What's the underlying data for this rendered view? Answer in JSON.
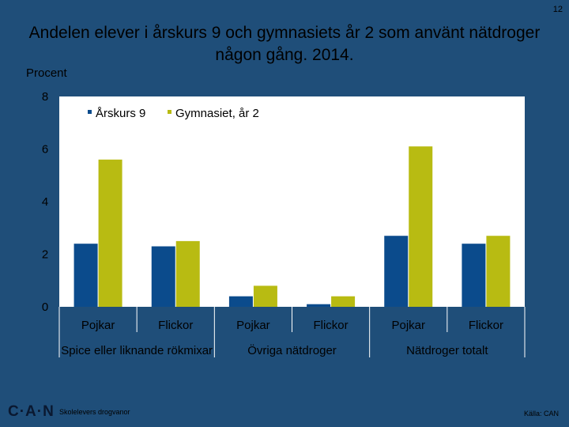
{
  "page_number": "12",
  "colors": {
    "background": "#1f4e79",
    "plot_background": "#ffffff",
    "series_1": "#0b4b8c",
    "series_2": "#b8bb12"
  },
  "footer": {
    "logo": "C·A·N",
    "subtitle": "Skolelevers drogvanor",
    "source": "Källa: CAN"
  },
  "chart_data": {
    "type": "bar",
    "title": "Andelen elever i årskurs 9 och gymnasiets år 2 som använt nätdroger någon gång. 2014.",
    "ylabel": "Procent",
    "ylim": [
      0,
      8
    ],
    "yticks": [
      0,
      2,
      4,
      6,
      8
    ],
    "categories": [
      "Pojkar",
      "Flickor",
      "Pojkar",
      "Flickor",
      "Pojkar",
      "Flickor"
    ],
    "groups": [
      "Spice eller liknande rökmixar",
      "Övriga nätdroger",
      "Nätdroger totalt"
    ],
    "series": [
      {
        "name": "Årskurs 9",
        "values": [
          2.4,
          2.3,
          0.4,
          0.1,
          2.7,
          2.4
        ]
      },
      {
        "name": "Gymnasiet, år 2",
        "values": [
          5.6,
          2.5,
          0.8,
          0.4,
          6.1,
          2.7
        ]
      }
    ],
    "legend_position": "top-left",
    "grid": false
  }
}
